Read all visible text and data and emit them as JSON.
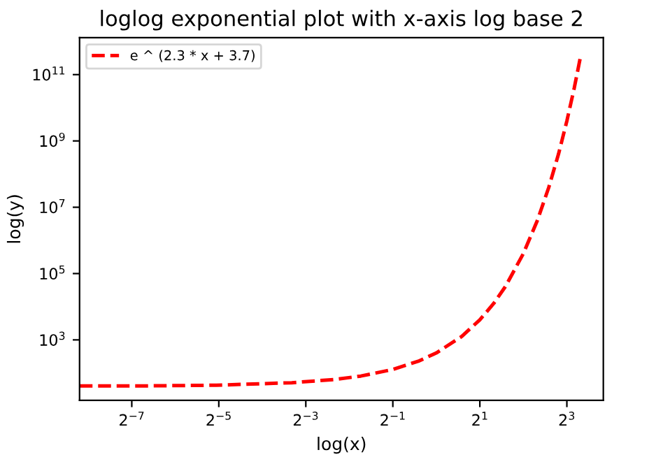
{
  "chart_data": {
    "type": "line",
    "title": "loglog exponential plot with x-axis log base 2",
    "xlabel": "log(x)",
    "ylabel": "log(y)",
    "log": "xy",
    "legend": "top left",
    "line_style": "dashed",
    "marker": "none",
    "grid": false,
    "xlim": [
      0.0034,
      14.3
    ],
    "ylim": [
      15,
      1300000000000
    ],
    "xticks": [
      {
        "value": 0.0078125,
        "label": "2$^{−7}$"
      },
      {
        "value": 0.03125,
        "label": "2$^{−5}$"
      },
      {
        "value": 0.125,
        "label": "2$^{−3}$"
      },
      {
        "value": 0.5,
        "label": "2$^{−1}$"
      },
      {
        "value": 2,
        "label": "2$^{1}$"
      },
      {
        "value": 8,
        "label": "2$^{3}$"
      }
    ],
    "yticks": [
      {
        "value": 1000,
        "label": "10$^{3}$"
      },
      {
        "value": 100000,
        "label": "10$^{5}$"
      },
      {
        "value": 10000000,
        "label": "10$^{7}$"
      },
      {
        "value": 1000000000,
        "label": "10$^{9}$"
      },
      {
        "value": 100000000000,
        "label": "10$^{11}$"
      }
    ],
    "x": [
      0.0034,
      0.01,
      0.03,
      0.1,
      0.2,
      0.3,
      0.5,
      0.75,
      1,
      1.5,
      2,
      2.5,
      3,
      4,
      5,
      6,
      7,
      8,
      9,
      10
    ],
    "series": [
      {
        "name": "e ^ (2.3 * x + 3.7)",
        "color": "#ff0000",
        "values": [
          41,
          41,
          43,
          51,
          64,
          81,
          128,
          227,
          403,
          1274,
          4024,
          12710,
          40135,
          400000,
          4000000,
          40000000,
          400000000,
          4000000000,
          39600000000,
          395000000000
        ]
      }
    ]
  }
}
